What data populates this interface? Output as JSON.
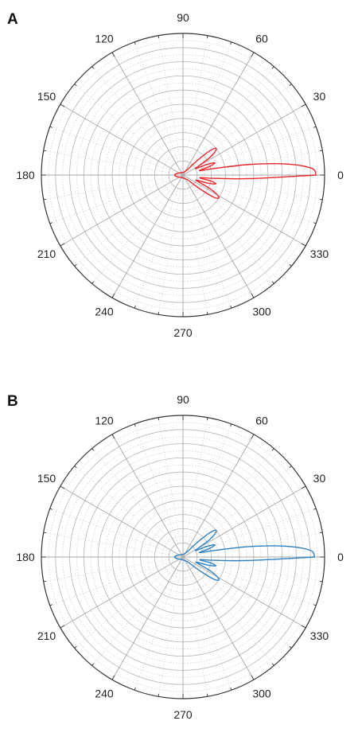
{
  "chart_data": [
    {
      "panel_label": "A",
      "type": "polar-line",
      "title": "",
      "angle_ticks": [
        "0",
        "30",
        "60",
        "90",
        "120",
        "150",
        "180",
        "210",
        "240",
        "270",
        "300",
        "330"
      ],
      "radial_grid": true,
      "rlim": [
        0,
        1
      ],
      "color": "#e8262a",
      "series": [
        {
          "angles_deg": [
            0,
            3,
            6,
            9,
            12,
            15,
            18,
            21,
            24,
            27,
            30,
            33,
            36,
            39,
            42,
            45,
            48,
            51,
            54,
            57,
            60,
            75,
            90,
            120,
            150,
            170,
            180,
            190,
            210,
            240,
            270,
            300,
            315,
            318,
            321,
            324,
            327,
            330,
            333,
            336,
            339,
            342,
            345,
            348,
            351,
            354,
            357,
            360
          ],
          "values": [
            0.94,
            0.91,
            0.74,
            0.48,
            0.22,
            0.12,
            0.2,
            0.24,
            0.18,
            0.1,
            0.13,
            0.22,
            0.28,
            0.3,
            0.26,
            0.16,
            0.08,
            0.05,
            0.04,
            0.03,
            0.03,
            0.02,
            0.02,
            0.02,
            0.03,
            0.05,
            0.06,
            0.05,
            0.03,
            0.02,
            0.02,
            0.03,
            0.05,
            0.08,
            0.16,
            0.26,
            0.3,
            0.28,
            0.22,
            0.13,
            0.1,
            0.18,
            0.24,
            0.2,
            0.12,
            0.22,
            0.48,
            0.94
          ]
        }
      ]
    },
    {
      "panel_label": "B",
      "type": "polar-line",
      "title": "",
      "angle_ticks": [
        "0",
        "30",
        "60",
        "90",
        "120",
        "150",
        "180",
        "210",
        "240",
        "270",
        "300",
        "330"
      ],
      "radial_grid": true,
      "rlim": [
        0,
        1
      ],
      "color": "#2f80c0",
      "series": [
        {
          "angles_deg": [
            0,
            3,
            6,
            9,
            12,
            15,
            18,
            21,
            24,
            27,
            30,
            33,
            36,
            39,
            42,
            45,
            48,
            51,
            54,
            57,
            60,
            75,
            90,
            120,
            150,
            170,
            180,
            190,
            210,
            240,
            270,
            300,
            315,
            318,
            321,
            324,
            327,
            330,
            333,
            336,
            339,
            342,
            345,
            348,
            351,
            354,
            357,
            360
          ],
          "values": [
            0.93,
            0.9,
            0.73,
            0.47,
            0.22,
            0.12,
            0.2,
            0.24,
            0.18,
            0.1,
            0.13,
            0.22,
            0.28,
            0.3,
            0.26,
            0.16,
            0.08,
            0.05,
            0.04,
            0.03,
            0.03,
            0.02,
            0.02,
            0.02,
            0.03,
            0.05,
            0.06,
            0.05,
            0.03,
            0.02,
            0.02,
            0.03,
            0.05,
            0.08,
            0.16,
            0.26,
            0.3,
            0.28,
            0.22,
            0.13,
            0.1,
            0.18,
            0.24,
            0.2,
            0.12,
            0.22,
            0.47,
            0.93
          ]
        }
      ]
    }
  ]
}
